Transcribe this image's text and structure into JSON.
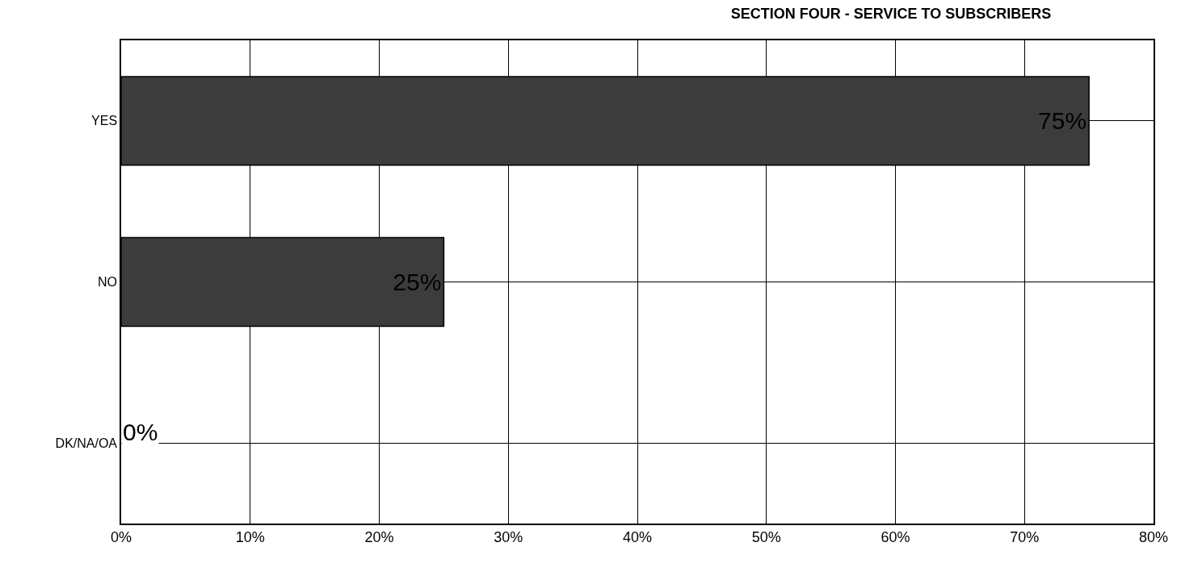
{
  "chart_data": {
    "type": "bar",
    "orientation": "horizontal",
    "title": "SECTION FOUR - SERVICE TO SUBSCRIBERS",
    "categories": [
      "YES",
      "NO",
      "DK/NA/OA"
    ],
    "values": [
      75,
      25,
      0
    ],
    "value_labels": [
      "75%",
      "25%",
      "0%"
    ],
    "color": "#3c3c3c",
    "xlim": [
      0,
      80
    ],
    "xticks": [
      {
        "value": 0,
        "label": "0%"
      },
      {
        "value": 10,
        "label": "10%"
      },
      {
        "value": 20,
        "label": "20%"
      },
      {
        "value": 30,
        "label": "30%"
      },
      {
        "value": 40,
        "label": "40%"
      },
      {
        "value": 50,
        "label": "50%"
      },
      {
        "value": 60,
        "label": "60%"
      },
      {
        "value": 70,
        "label": "70%"
      },
      {
        "value": 80,
        "label": "80%"
      }
    ],
    "grid": true
  }
}
